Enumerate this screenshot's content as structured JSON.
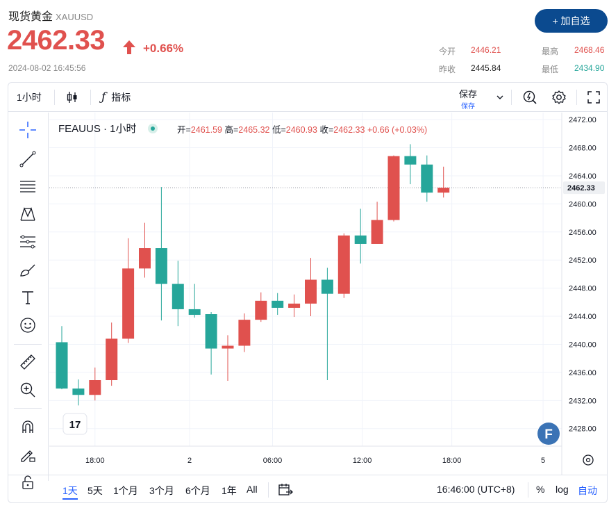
{
  "header": {
    "title": "现货黄金",
    "symbol": "XAUUSD",
    "price": "2462.33",
    "change_pct": "+0.66%",
    "timestamp": "2024-08-02 16:45:56",
    "add_button": "+ 加自选",
    "stats": {
      "open_label": "今开",
      "open_value": "2446.21",
      "high_label": "最高",
      "high_value": "2468.46",
      "prev_label": "昨收",
      "prev_value": "2445.84",
      "low_label": "最低",
      "low_value": "2434.90"
    },
    "colors": {
      "up": "#e0514e",
      "down": "#26a69a",
      "brand": "#0b4a8f"
    }
  },
  "toolbar": {
    "interval": "1小时",
    "indicators": "指标",
    "save_label": "保存",
    "save_sub": "保存"
  },
  "legend": {
    "name": "FEAUUS · 1小时",
    "open_label": "开=",
    "open": "2461.59",
    "high_label": "高=",
    "high": "2465.32",
    "low_label": "低=",
    "low": "2460.93",
    "close_label": "收=",
    "close": "2462.33",
    "change": "+0.66 (+0.03%)"
  },
  "chart_data": {
    "type": "candlestick",
    "last_price_label": "2462.33",
    "y_ticks": [
      "2472.00",
      "2468.00",
      "2464.00",
      "2460.00",
      "2456.00",
      "2452.00",
      "2448.00",
      "2444.00",
      "2440.00",
      "2436.00",
      "2432.00",
      "2428.00"
    ],
    "ylim": [
      2425.5,
      2473.0
    ],
    "x_ticks": [
      "18:00",
      "2",
      "06:00",
      "12:00",
      "18:00",
      "5"
    ],
    "candles": [
      {
        "o": 2440.3,
        "h": 2442.6,
        "l": 2433.6,
        "c": 2433.7
      },
      {
        "o": 2433.7,
        "h": 2435.0,
        "l": 2431.3,
        "c": 2432.8
      },
      {
        "o": 2432.8,
        "h": 2436.7,
        "l": 2432.0,
        "c": 2434.9
      },
      {
        "o": 2434.9,
        "h": 2443.1,
        "l": 2434.1,
        "c": 2440.8
      },
      {
        "o": 2440.8,
        "h": 2455.1,
        "l": 2440.2,
        "c": 2450.8
      },
      {
        "o": 2450.8,
        "h": 2457.3,
        "l": 2449.5,
        "c": 2453.7
      },
      {
        "o": 2453.7,
        "h": 2462.4,
        "l": 2443.4,
        "c": 2448.6
      },
      {
        "o": 2448.6,
        "h": 2451.9,
        "l": 2442.6,
        "c": 2445.0
      },
      {
        "o": 2445.0,
        "h": 2448.6,
        "l": 2443.8,
        "c": 2444.2
      },
      {
        "o": 2444.3,
        "h": 2444.6,
        "l": 2435.7,
        "c": 2439.4
      },
      {
        "o": 2439.4,
        "h": 2441.3,
        "l": 2434.8,
        "c": 2439.8
      },
      {
        "o": 2439.8,
        "h": 2444.4,
        "l": 2438.9,
        "c": 2443.5
      },
      {
        "o": 2443.5,
        "h": 2447.4,
        "l": 2443.2,
        "c": 2446.2
      },
      {
        "o": 2446.2,
        "h": 2447.3,
        "l": 2444.2,
        "c": 2445.2
      },
      {
        "o": 2445.2,
        "h": 2447.1,
        "l": 2443.9,
        "c": 2445.8
      },
      {
        "o": 2445.8,
        "h": 2452.3,
        "l": 2444.0,
        "c": 2449.2
      },
      {
        "o": 2449.2,
        "h": 2450.9,
        "l": 2434.9,
        "c": 2447.2
      },
      {
        "o": 2447.2,
        "h": 2455.8,
        "l": 2446.6,
        "c": 2455.5
      },
      {
        "o": 2455.5,
        "h": 2459.3,
        "l": 2451.5,
        "c": 2454.3
      },
      {
        "o": 2454.3,
        "h": 2460.3,
        "l": 2454.3,
        "c": 2457.7
      },
      {
        "o": 2457.7,
        "h": 2466.9,
        "l": 2457.5,
        "c": 2466.8
      },
      {
        "o": 2466.8,
        "h": 2468.5,
        "l": 2462.8,
        "c": 2465.6
      },
      {
        "o": 2465.6,
        "h": 2466.9,
        "l": 2460.3,
        "c": 2461.6
      },
      {
        "o": 2461.6,
        "h": 2465.3,
        "l": 2460.9,
        "c": 2462.3
      }
    ]
  },
  "bottombar": {
    "ranges": [
      "1天",
      "5天",
      "1个月",
      "3个月",
      "6个月",
      "1年",
      "All"
    ],
    "active_range": "1天",
    "clock": "16:46:00 (UTC+8)",
    "percent": "%",
    "log": "log",
    "auto": "自动"
  }
}
